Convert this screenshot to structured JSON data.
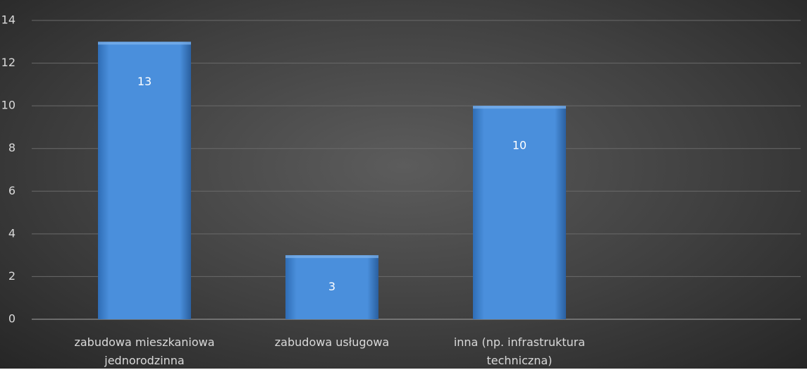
{
  "chart_data": {
    "type": "bar",
    "categories": [
      "zabudowa mieszkaniowa jednorodzinna",
      "zabudowa usługowa",
      "inna (np. infrastruktura techniczna)",
      null
    ],
    "values": [
      13,
      3,
      10,
      null
    ],
    "color": "#4a8fdc",
    "ylim": [
      0,
      14
    ],
    "yticks": [
      0,
      2,
      4,
      6,
      8,
      10,
      12,
      14
    ],
    "grid": true
  }
}
